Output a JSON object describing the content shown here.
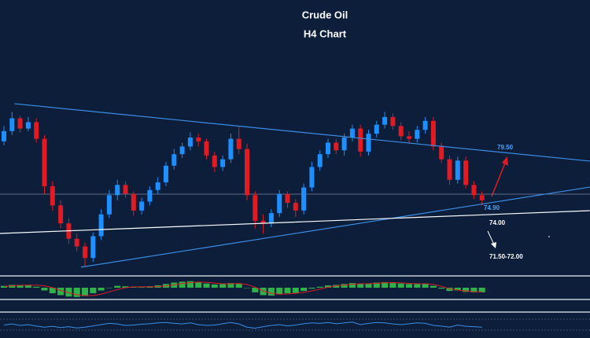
{
  "chart_data": {
    "type": "candlestick",
    "title": "Crude Oil",
    "subtitle": "H4 Chart",
    "ylim": [
      69.56,
      84.9
    ],
    "up_color": "#1e8fff",
    "down_color": "#e01b24",
    "open": [
      80.0,
      80.8,
      81.8,
      81.0,
      81.5,
      80.2,
      76.5,
      75.0,
      73.6,
      72.4,
      71.8,
      70.9,
      72.6,
      74.3,
      75.8,
      76.6,
      75.9,
      74.6,
      75.3,
      76.2,
      76.8,
      78.1,
      79.0,
      79.6,
      80.3,
      80.0,
      78.9,
      78.0,
      78.6,
      80.2,
      79.4,
      75.8,
      73.8,
      73.6,
      74.4,
      75.9,
      75.2,
      74.6,
      76.4,
      78.0,
      79.0,
      79.9,
      79.3,
      80.3,
      81.0,
      79.2,
      80.6,
      81.3,
      81.9,
      81.2,
      80.4,
      80.2,
      80.9,
      81.6,
      79.6,
      78.6,
      77.0,
      78.5,
      76.6,
      75.8
    ],
    "high": [
      81.2,
      82.3,
      82.0,
      81.9,
      81.8,
      80.5,
      76.9,
      75.4,
      74.0,
      72.8,
      72.1,
      72.9,
      74.7,
      76.2,
      77.0,
      76.9,
      76.1,
      75.6,
      76.5,
      77.2,
      78.4,
      79.4,
      79.9,
      80.7,
      80.6,
      80.2,
      79.2,
      78.9,
      80.6,
      81.2,
      79.8,
      76.1,
      74.3,
      74.7,
      76.2,
      76.1,
      75.5,
      76.7,
      78.4,
      79.3,
      80.2,
      80.2,
      80.6,
      81.3,
      81.3,
      80.9,
      81.6,
      82.3,
      82.2,
      81.5,
      80.8,
      81.2,
      81.9,
      81.9,
      79.9,
      78.9,
      78.8,
      78.8,
      76.9,
      76.1
    ],
    "low": [
      79.7,
      80.5,
      80.7,
      80.8,
      79.9,
      75.9,
      74.6,
      73.2,
      72.0,
      71.4,
      70.2,
      70.6,
      72.3,
      74.0,
      75.4,
      75.6,
      74.2,
      74.3,
      75.0,
      75.9,
      76.5,
      77.8,
      78.7,
      79.3,
      79.6,
      78.6,
      77.6,
      77.7,
      78.3,
      79.0,
      75.4,
      73.2,
      72.8,
      73.3,
      74.1,
      74.8,
      74.1,
      74.3,
      76.1,
      77.7,
      78.7,
      79.0,
      78.9,
      80.0,
      78.8,
      78.9,
      80.3,
      81.0,
      80.9,
      80.1,
      79.9,
      79.9,
      80.6,
      79.3,
      78.3,
      76.6,
      76.7,
      76.3,
      75.5,
      75.0
    ],
    "close": [
      80.8,
      81.8,
      81.0,
      81.5,
      80.2,
      76.5,
      75.0,
      73.6,
      72.4,
      71.8,
      70.9,
      72.6,
      74.3,
      75.8,
      76.6,
      75.9,
      74.6,
      75.3,
      76.2,
      76.8,
      78.1,
      79.0,
      79.6,
      80.3,
      80.0,
      78.9,
      78.0,
      78.6,
      80.2,
      79.4,
      75.8,
      73.8,
      73.6,
      74.4,
      75.9,
      75.2,
      74.6,
      76.4,
      78.0,
      79.0,
      79.9,
      79.3,
      80.3,
      81.0,
      79.2,
      80.6,
      81.3,
      81.9,
      81.2,
      80.4,
      80.2,
      80.9,
      81.6,
      79.6,
      78.6,
      77.0,
      78.5,
      76.6,
      75.8,
      75.4
    ],
    "trendlines": [
      {
        "color": "#3a8ee6",
        "x": [
          1.3,
          72.3
        ],
        "y": [
          82.94,
          78.46
        ]
      },
      {
        "color": "#3a8ee6",
        "x": [
          9.5,
          72.3
        ],
        "y": [
          70.18,
          76.43
        ]
      },
      {
        "color": "#ffffff",
        "x": [
          -0.5,
          72.3
        ],
        "y": [
          72.81,
          74.59
        ]
      }
    ],
    "hlines": [
      {
        "value": 75.88,
        "color": "#5f6f8a"
      }
    ],
    "annotations": [
      {
        "text": "79.50",
        "color": "#4aa3ff"
      },
      {
        "text": "74.90",
        "color": "#4aa3ff"
      },
      {
        "text": "74.00",
        "color": "#ffffff"
      },
      {
        "text": "71.50-72.00",
        "color": "#ffffff"
      }
    ],
    "macd": {
      "ylim": [
        -1.1,
        1.1
      ],
      "color": "#2fb24a",
      "signal_color": "#e01b24",
      "histogram": [
        0.2,
        0.3,
        0.3,
        0.25,
        0.1,
        -0.3,
        -0.6,
        -0.8,
        -0.95,
        -1.0,
        -0.9,
        -0.6,
        -0.3,
        0.0,
        0.2,
        0.15,
        0.05,
        0.05,
        0.15,
        0.25,
        0.4,
        0.55,
        0.65,
        0.7,
        0.6,
        0.45,
        0.35,
        0.4,
        0.5,
        0.45,
        0.0,
        -0.5,
        -0.8,
        -0.85,
        -0.7,
        -0.6,
        -0.55,
        -0.35,
        -0.1,
        0.1,
        0.25,
        0.3,
        0.4,
        0.5,
        0.4,
        0.45,
        0.55,
        0.6,
        0.55,
        0.45,
        0.4,
        0.4,
        0.45,
        0.2,
        -0.1,
        -0.35,
        -0.3,
        -0.45,
        -0.5,
        -0.5
      ],
      "signal": [
        0.15,
        0.2,
        0.25,
        0.28,
        0.27,
        0.2,
        0.0,
        -0.3,
        -0.55,
        -0.75,
        -0.85,
        -0.85,
        -0.7,
        -0.45,
        -0.2,
        0.0,
        0.1,
        0.1,
        0.1,
        0.12,
        0.2,
        0.3,
        0.45,
        0.55,
        0.6,
        0.58,
        0.5,
        0.42,
        0.42,
        0.45,
        0.35,
        0.05,
        -0.35,
        -0.6,
        -0.7,
        -0.68,
        -0.6,
        -0.5,
        -0.35,
        -0.15,
        0.05,
        0.2,
        0.28,
        0.38,
        0.42,
        0.43,
        0.48,
        0.53,
        0.55,
        0.52,
        0.47,
        0.43,
        0.42,
        0.35,
        0.15,
        -0.1,
        -0.25,
        -0.35,
        -0.42,
        -0.45
      ]
    },
    "oscillator": {
      "ylim": [
        0,
        100
      ],
      "color": "#3a8ee6",
      "values": [
        50,
        55,
        48,
        52,
        45,
        40,
        44,
        38,
        42,
        36,
        40,
        46,
        52,
        58,
        55,
        48,
        50,
        54,
        56,
        60,
        62,
        58,
        55,
        60,
        52,
        48,
        50,
        56,
        62,
        55,
        40,
        35,
        42,
        48,
        52,
        46,
        50,
        56,
        60,
        58,
        62,
        56,
        60,
        64,
        52,
        58,
        62,
        60,
        55,
        52,
        56,
        60,
        58,
        48,
        45,
        40,
        50,
        44,
        42,
        40
      ]
    }
  }
}
